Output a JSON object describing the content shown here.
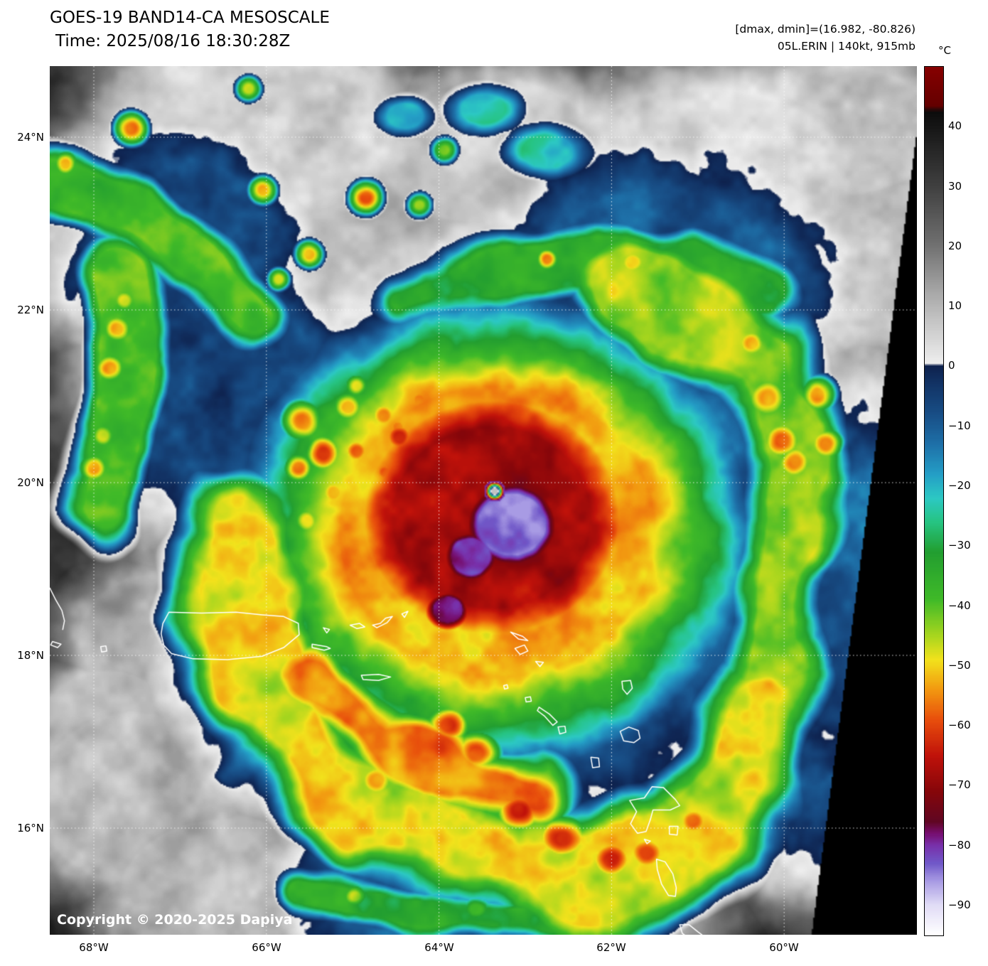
{
  "header": {
    "title": "GOES-19 BAND14-CA MESOSCALE",
    "time_line": "Time: 2025/08/16 18:30:28Z",
    "dmax_dmin": "[dmax, dmin]=(16.982, -80.826)",
    "storm_info": "05L.ERIN | 140kt, 915mb"
  },
  "axes": {
    "lat_labels": [
      "24°N",
      "22°N",
      "20°N",
      "18°N",
      "16°N"
    ],
    "lon_labels": [
      "68°W",
      "66°W",
      "64°W",
      "62°W",
      "60°W"
    ]
  },
  "colorbar": {
    "unit": "°C",
    "ticks": [
      "40",
      "30",
      "20",
      "10",
      "0",
      "−10",
      "−20",
      "−30",
      "−40",
      "−50",
      "−60",
      "−70",
      "−80",
      "−90"
    ]
  },
  "footer": {
    "copyright": "Copyright © 2020-2025 Dapiya"
  }
}
